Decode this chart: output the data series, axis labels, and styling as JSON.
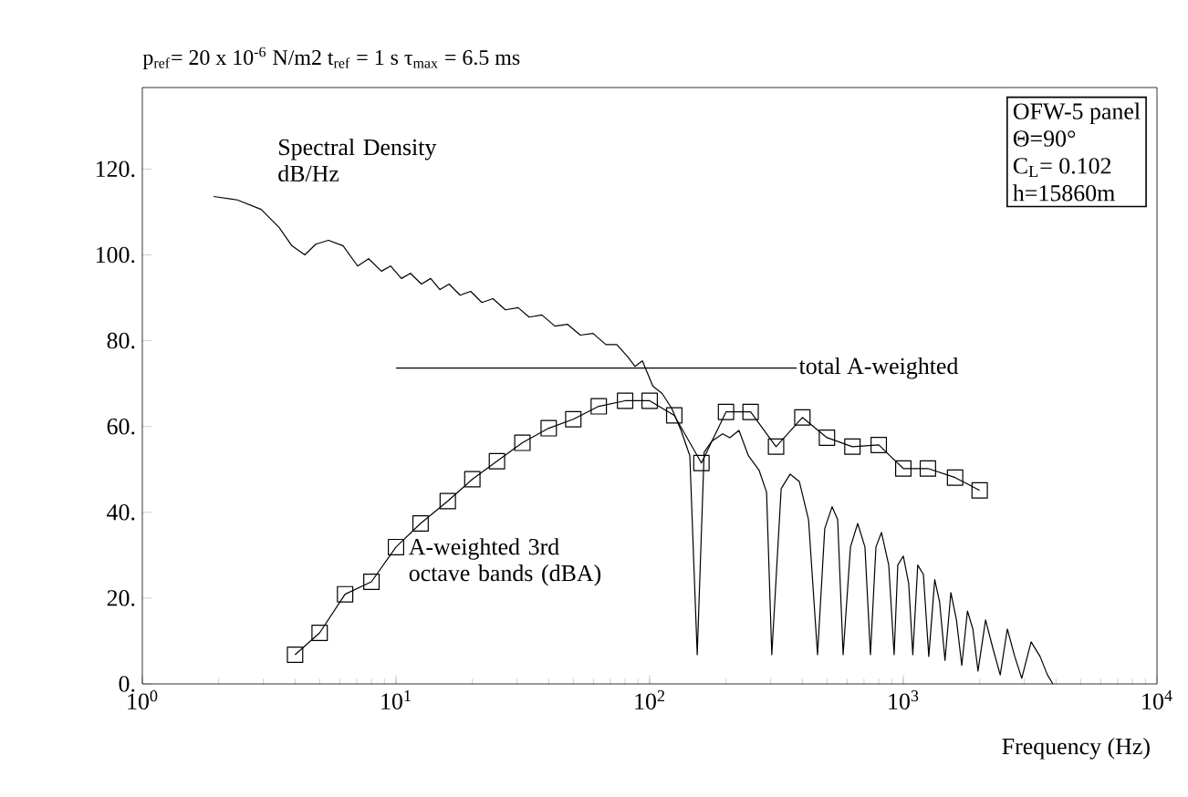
{
  "chart_data": {
    "type": "line",
    "title": "p$_{ref}$= 20 x 10$^{-6}$ N/m2     t$_{ref}$ = 1 s     τ$_{max}$ = 6.5 ms",
    "xlabel": "Frequency (Hz)",
    "log": "x",
    "xlim": [
      1,
      10000
    ],
    "xticks": [
      {
        "value": 1,
        "label": "10$^{0}$"
      },
      {
        "value": 10,
        "label": "10$^{1}$"
      },
      {
        "value": 100,
        "label": "10$^{2}$"
      },
      {
        "value": 1000,
        "label": "10$^{3}$"
      },
      {
        "value": 10000,
        "label": "10$^{4}$"
      }
    ],
    "ylim": [
      0,
      139
    ],
    "yticks": [
      {
        "value": 0,
        "label": "0."
      },
      {
        "value": 20,
        "label": "20."
      },
      {
        "value": 40,
        "label": "40."
      },
      {
        "value": 60,
        "label": "60."
      },
      {
        "value": 80,
        "label": "80."
      },
      {
        "value": 100,
        "label": "100."
      },
      {
        "value": 120,
        "label": "120."
      }
    ],
    "annotations": [
      "OFW-5 panel",
      "Θ=90°",
      "C$_{L}$= 0.102",
      "h=15860m"
    ],
    "series": [
      {
        "name": "Spectral Density dB/Hz",
        "color": "#000000",
        "marker": "none",
        "x": [
          1.91,
          2.37,
          2.94,
          3.46,
          3.89,
          4.37,
          4.83,
          5.42,
          6.19,
          7.06,
          7.8,
          8.76,
          9.52,
          10.5,
          11.4,
          12.6,
          13.7,
          14.9,
          16.2,
          17.9,
          19.7,
          21.8,
          24.1,
          27.0,
          30.3,
          33.5,
          37.6,
          42.3,
          47.5,
          53.3,
          59.8,
          67.2,
          74.2,
          82.0,
          87.6,
          93.6,
          103,
          112,
          122,
          133,
          144,
          154,
          164,
          176,
          194,
          207,
          225,
          245,
          270,
          289,
          303,
          330,
          358,
          389,
          423,
          459,
          490,
          524,
          551,
          579,
          619,
          661,
          706,
          742,
          780,
          820,
          876,
          920,
          951,
          1000,
          1050,
          1090,
          1140,
          1200,
          1260,
          1330,
          1390,
          1460,
          1540,
          1620,
          1700,
          1790,
          1880,
          1970,
          2110,
          2250,
          2410,
          2570,
          2750,
          2930,
          3190,
          3460,
          3700,
          3890
        ],
        "values": [
          113.6,
          112.8,
          110.6,
          106.4,
          102.1,
          100.0,
          102.5,
          103.4,
          102.1,
          97.4,
          99.1,
          96.2,
          97.4,
          94.5,
          95.7,
          93.2,
          94.5,
          91.9,
          93.2,
          90.6,
          91.5,
          88.9,
          89.8,
          87.2,
          87.7,
          85.5,
          86.0,
          83.4,
          83.8,
          81.3,
          81.7,
          79.1,
          79.1,
          76.2,
          74.0,
          75.3,
          69.4,
          67.7,
          64.3,
          59.1,
          53.2,
          6.8,
          54.0,
          56.6,
          58.3,
          57.4,
          59.1,
          53.2,
          49.8,
          44.7,
          6.8,
          45.5,
          48.9,
          47.2,
          38.3,
          6.8,
          36.2,
          41.3,
          38.3,
          6.8,
          31.9,
          37.4,
          31.9,
          6.8,
          31.9,
          35.3,
          27.7,
          6.8,
          27.7,
          29.8,
          23.4,
          6.8,
          27.7,
          25.5,
          6.4,
          24.3,
          19.1,
          5.5,
          21.3,
          14.9,
          4.3,
          17.0,
          12.8,
          3.0,
          14.9,
          8.5,
          2.1,
          12.8,
          6.4,
          1.3,
          9.8,
          6.4,
          2.1,
          0
        ]
      },
      {
        "name": "A-weighted 3rd octave bands (dBA)",
        "color": "#000000",
        "marker": "square",
        "x": [
          4,
          5,
          6.3,
          8,
          10,
          12.5,
          16,
          20,
          25,
          31.5,
          40,
          50,
          63,
          80,
          100,
          125,
          160,
          200,
          250,
          315,
          400,
          500,
          630,
          800,
          1000,
          1250,
          1600,
          2000
        ],
        "values": [
          6.8,
          11.9,
          20.9,
          23.8,
          31.9,
          37.4,
          42.6,
          47.7,
          51.9,
          56.2,
          59.6,
          61.7,
          64.7,
          66.0,
          66.0,
          62.6,
          51.5,
          63.4,
          63.4,
          55.3,
          62.1,
          57.4,
          55.3,
          55.7,
          50.2,
          50.2,
          48.1,
          45.1
        ]
      },
      {
        "name": "total A-weighted",
        "color": "#000000",
        "marker": "none",
        "x": [
          10,
          380
        ],
        "values": [
          73.6,
          73.6
        ]
      }
    ]
  }
}
